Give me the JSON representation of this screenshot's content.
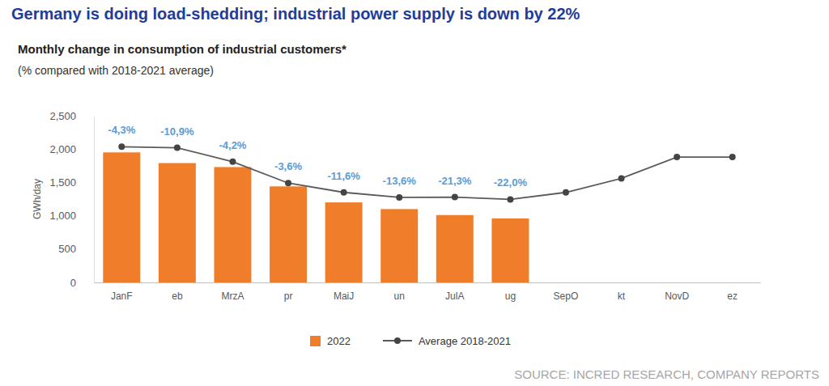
{
  "chart_data": {
    "type": "bar",
    "title": "Germany is doing load-shedding; industrial power supply is down by 22%",
    "subtitle": "Monthly change in consumption of industrial customers*",
    "subtitle_note": "(% compared with 2018-2021 average)",
    "y_label": "GWh/day",
    "source": "SOURCE: INCRED RESEARCH, COMPANY REPORTS",
    "categories": [
      "JanF",
      "eb",
      "MrzA",
      "pr",
      "MaiJ",
      "un",
      "JulA",
      "ug",
      "SepO",
      "kt",
      "NovD",
      "ez"
    ],
    "series": [
      {
        "name": "2022",
        "type": "bar",
        "color": "#f07d2a",
        "values": [
          1950,
          1790,
          1730,
          1440,
          1200,
          1100,
          1010,
          960,
          null,
          null,
          null,
          null
        ],
        "changes": [
          -4.3,
          -10.9,
          -4.2,
          -3.6,
          -11.6,
          -13.6,
          -21.3,
          -22.0,
          null,
          null,
          null,
          null
        ],
        "change_labels": [
          "-4,3%",
          "-10,9%",
          "-4,2%",
          "-3,6%",
          "-11,6%",
          "-13,6%",
          "-21,3%",
          "-22,0%",
          null,
          null,
          null,
          null
        ]
      },
      {
        "name": "Average 2018-2021",
        "type": "line",
        "color": "#5a5a5a",
        "marker": "circle",
        "values": [
          2035,
          2020,
          1810,
          1490,
          1350,
          1275,
          1280,
          1245,
          1350,
          1560,
          1880,
          1880
        ]
      }
    ],
    "ylim": [
      0,
      2500
    ],
    "yticks": [
      0,
      500,
      {
        "value": 1000,
        "label": "1,000"
      },
      {
        "value": 1500,
        "label": "1,500"
      },
      {
        "value": 2000,
        "label": "2,000"
      },
      {
        "value": 2500,
        "label": "2,500"
      }
    ],
    "grid": false,
    "legend": "bottom",
    "data_labels": false
  }
}
